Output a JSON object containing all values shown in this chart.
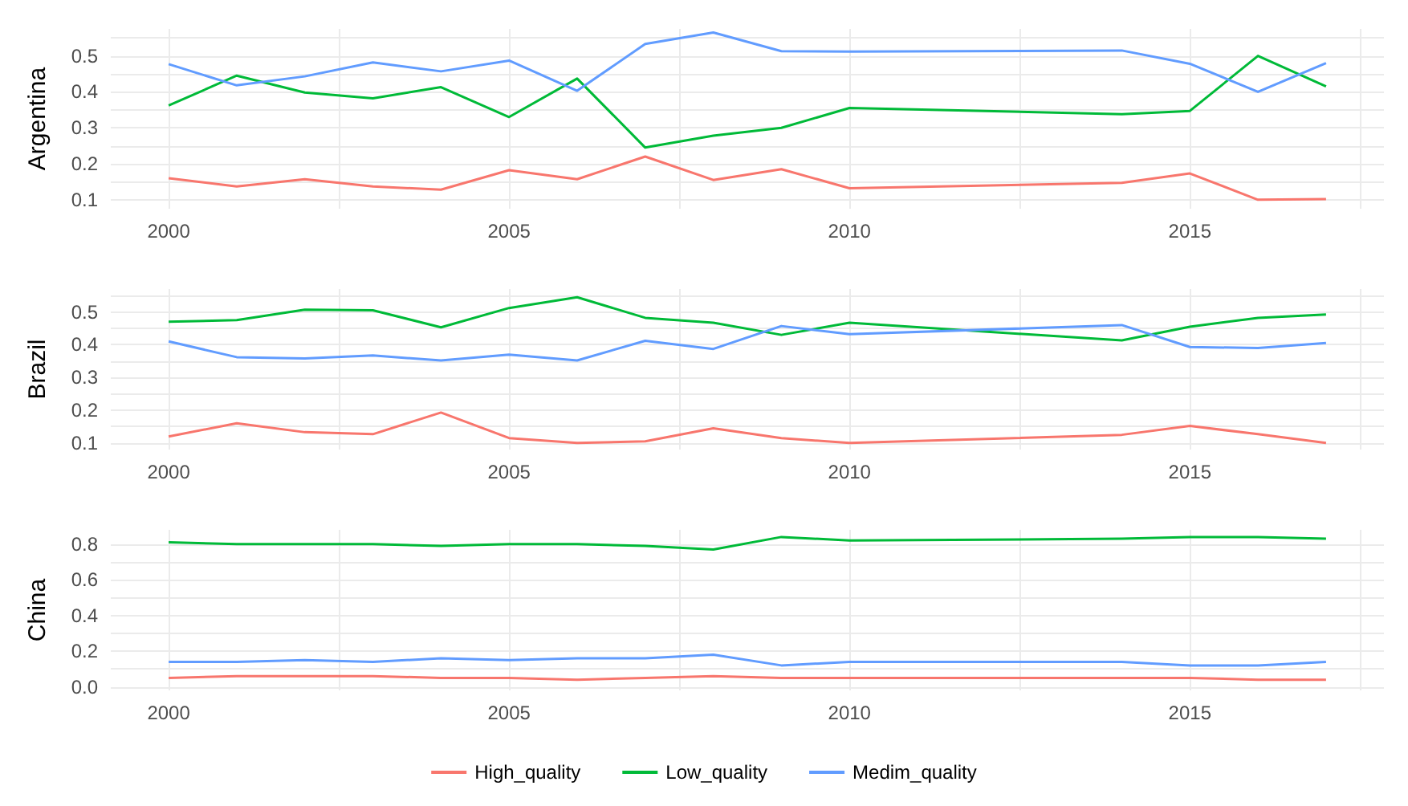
{
  "chart_data": [
    {
      "type": "line",
      "ylabel": "Argentina",
      "x": [
        2000,
        2001,
        2002,
        2003,
        2004,
        2005,
        2006,
        2007,
        2008,
        2009,
        2010,
        2014,
        2015,
        2016,
        2017
      ],
      "xlim": [
        1999.15,
        2017.85
      ],
      "xticks": [
        2000,
        {
          "value": 2002.5,
          "label": null
        },
        2005,
        {
          "value": 2007.5,
          "label": null
        },
        2010,
        {
          "value": 2012.5,
          "label": null
        },
        2015,
        {
          "value": 2017.5,
          "label": null
        }
      ],
      "ylim": [
        0.075,
        0.575
      ],
      "yticks": [
        0.1,
        {
          "value": 0.15,
          "label": null
        },
        0.2,
        {
          "value": 0.25,
          "label": null
        },
        0.3,
        {
          "value": 0.35,
          "label": null
        },
        0.4,
        {
          "value": 0.45,
          "label": null
        },
        0.5,
        {
          "value": 0.55,
          "label": null
        }
      ],
      "grid": true,
      "series": [
        {
          "color": "#f8766d",
          "values": [
            0.16,
            0.137,
            0.157,
            0.137,
            0.128,
            0.182,
            0.157,
            0.22,
            0.155,
            0.185,
            0.132,
            0.147,
            0.173,
            0.1,
            0.102
          ]
        },
        {
          "color": "#00ba38",
          "values": [
            0.362,
            0.445,
            0.398,
            0.382,
            0.413,
            0.33,
            0.437,
            0.245,
            0.278,
            0.3,
            0.355,
            0.338,
            0.347,
            0.5,
            0.415
          ]
        },
        {
          "color": "#619cff",
          "values": [
            0.477,
            0.418,
            0.443,
            0.482,
            0.457,
            0.487,
            0.403,
            0.533,
            0.565,
            0.513,
            0.512,
            0.515,
            0.478,
            0.4,
            0.48
          ]
        }
      ]
    },
    {
      "type": "line",
      "ylabel": "Brazil",
      "x": [
        2000,
        2001,
        2002,
        2003,
        2004,
        2005,
        2006,
        2007,
        2008,
        2009,
        2010,
        2014,
        2015,
        2016,
        2017
      ],
      "xlim": [
        1999.15,
        2017.85
      ],
      "xticks": [
        2000,
        {
          "value": 2002.5,
          "label": null
        },
        2005,
        {
          "value": 2007.5,
          "label": null
        },
        2010,
        {
          "value": 2012.5,
          "label": null
        },
        2015,
        {
          "value": 2017.5,
          "label": null
        }
      ],
      "ylim": [
        0.08,
        0.57
      ],
      "yticks": [
        0.1,
        {
          "value": 0.15,
          "label": null
        },
        0.2,
        {
          "value": 0.25,
          "label": null
        },
        0.3,
        {
          "value": 0.35,
          "label": null
        },
        0.4,
        {
          "value": 0.45,
          "label": null
        },
        0.5,
        {
          "value": 0.55,
          "label": null
        }
      ],
      "grid": true,
      "series": [
        {
          "color": "#f8766d",
          "values": [
            0.12,
            0.16,
            0.133,
            0.127,
            0.193,
            0.115,
            0.1,
            0.105,
            0.145,
            0.115,
            0.1,
            0.125,
            0.152,
            0.127,
            0.1
          ]
        },
        {
          "color": "#00ba38",
          "values": [
            0.47,
            0.475,
            0.507,
            0.505,
            0.453,
            0.512,
            0.545,
            0.482,
            0.467,
            0.43,
            0.467,
            0.413,
            0.455,
            0.482,
            0.492
          ]
        },
        {
          "color": "#619cff",
          "values": [
            0.41,
            0.362,
            0.358,
            0.367,
            0.352,
            0.37,
            0.352,
            0.412,
            0.387,
            0.457,
            0.432,
            0.46,
            0.393,
            0.39,
            0.405
          ]
        }
      ]
    },
    {
      "type": "line",
      "ylabel": "China",
      "x": [
        2000,
        2001,
        2002,
        2003,
        2004,
        2005,
        2006,
        2007,
        2008,
        2009,
        2010,
        2014,
        2015,
        2016,
        2017
      ],
      "xlim": [
        1999.15,
        2017.85
      ],
      "xticks": [
        2000,
        {
          "value": 2002.5,
          "label": null
        },
        2005,
        {
          "value": 2007.5,
          "label": null
        },
        2010,
        {
          "value": 2012.5,
          "label": null
        },
        2015,
        {
          "value": 2017.5,
          "label": null
        }
      ],
      "ylim": [
        -0.02,
        0.88
      ],
      "yticks": [
        {
          "value": 0,
          "label": "0.0"
        },
        {
          "value": 0.1,
          "label": null
        },
        0.2,
        {
          "value": 0.3,
          "label": null
        },
        0.4,
        {
          "value": 0.5,
          "label": null
        },
        0.6,
        {
          "value": 0.7,
          "label": null
        },
        0.8
      ],
      "grid": true,
      "legend": "bottom",
      "series": [
        {
          "name": "High_quality",
          "color": "#f8766d",
          "values": [
            0.05,
            0.06,
            0.06,
            0.06,
            0.05,
            0.05,
            0.04,
            0.05,
            0.06,
            0.05,
            0.05,
            0.05,
            0.05,
            0.04,
            0.04
          ]
        },
        {
          "name": "Low_quality",
          "color": "#00ba38",
          "values": [
            0.81,
            0.8,
            0.8,
            0.8,
            0.79,
            0.8,
            0.8,
            0.79,
            0.77,
            0.84,
            0.82,
            0.83,
            0.84,
            0.84,
            0.83
          ]
        },
        {
          "name": "Medim_quality",
          "color": "#619cff",
          "values": [
            0.14,
            0.14,
            0.15,
            0.14,
            0.16,
            0.15,
            0.16,
            0.16,
            0.18,
            0.12,
            0.14,
            0.14,
            0.12,
            0.12,
            0.14
          ]
        }
      ]
    }
  ]
}
